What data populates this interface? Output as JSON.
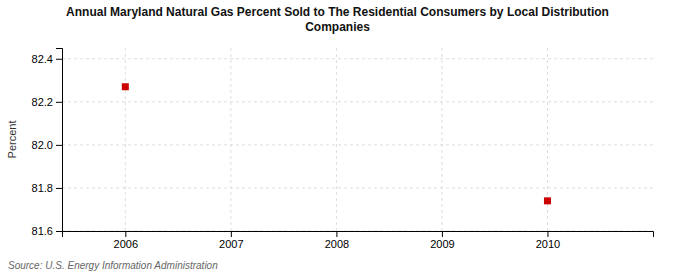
{
  "chart_data": {
    "type": "scatter",
    "title": "Annual Maryland Natural Gas Percent Sold to The Residential Consumers by Local Distribution\nCompanies",
    "ylabel": "Percent",
    "source": "Source: U.S. Energy Information Administration",
    "x": [
      2006,
      2010
    ],
    "values": [
      82.27,
      81.74
    ],
    "color": "#cc0000",
    "marker": "square",
    "xlim": [
      2005.4,
      2011.0
    ],
    "ylim": [
      81.6,
      82.45
    ],
    "xticks": [
      2006,
      2007,
      2008,
      2009,
      2010
    ],
    "yticks": [
      81.6,
      81.8,
      {
        "value": 82.0,
        "label": "82.0"
      },
      82.2,
      82.4
    ],
    "grid": true
  }
}
